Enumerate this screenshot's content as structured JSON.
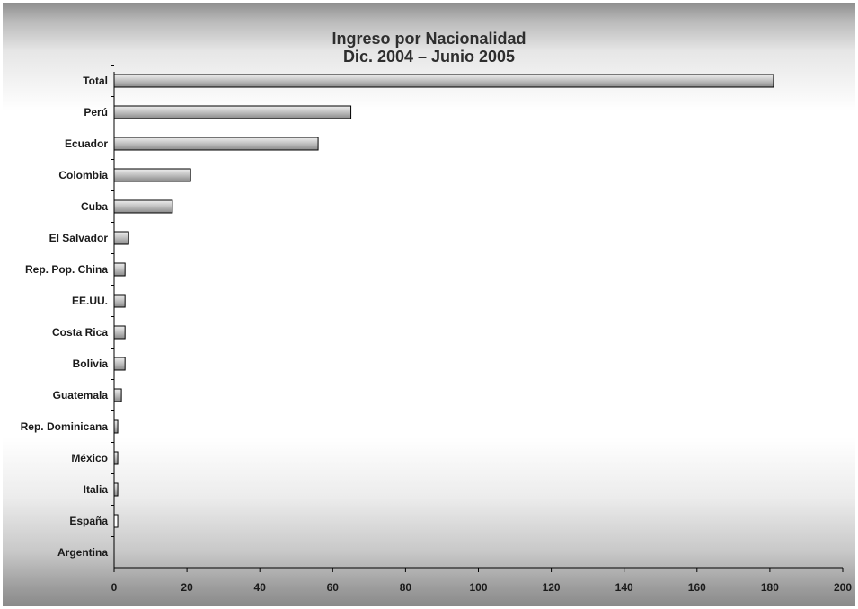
{
  "chart_data": {
    "type": "bar",
    "orientation": "horizontal",
    "title": "Ingreso por Nacionalidad",
    "subtitle": "Dic. 2004 – Junio 2005",
    "categories": [
      "Total",
      "Perú",
      "Ecuador",
      "Colombia",
      "Cuba",
      "El Salvador",
      "Rep. Pop. China",
      "EE.UU.",
      "Costa Rica",
      "Bolivia",
      "Guatemala",
      "Rep. Dominicana",
      "México",
      "Italia",
      "España",
      "Argentina"
    ],
    "values": [
      181,
      65,
      56,
      21,
      16,
      4,
      3,
      3,
      3,
      3,
      2,
      1,
      1,
      1,
      1,
      0
    ],
    "xlim": [
      0,
      200
    ],
    "xticks": [
      0,
      20,
      40,
      60,
      80,
      100,
      120,
      140,
      160,
      180,
      200
    ],
    "grid": false,
    "legend": "none"
  },
  "colors": {
    "bar_light": "#eeeeee",
    "bar_dark": "#8a8a8a",
    "bar_white": "#ffffff",
    "axis": "#000000",
    "text": "#1a1a1a"
  }
}
